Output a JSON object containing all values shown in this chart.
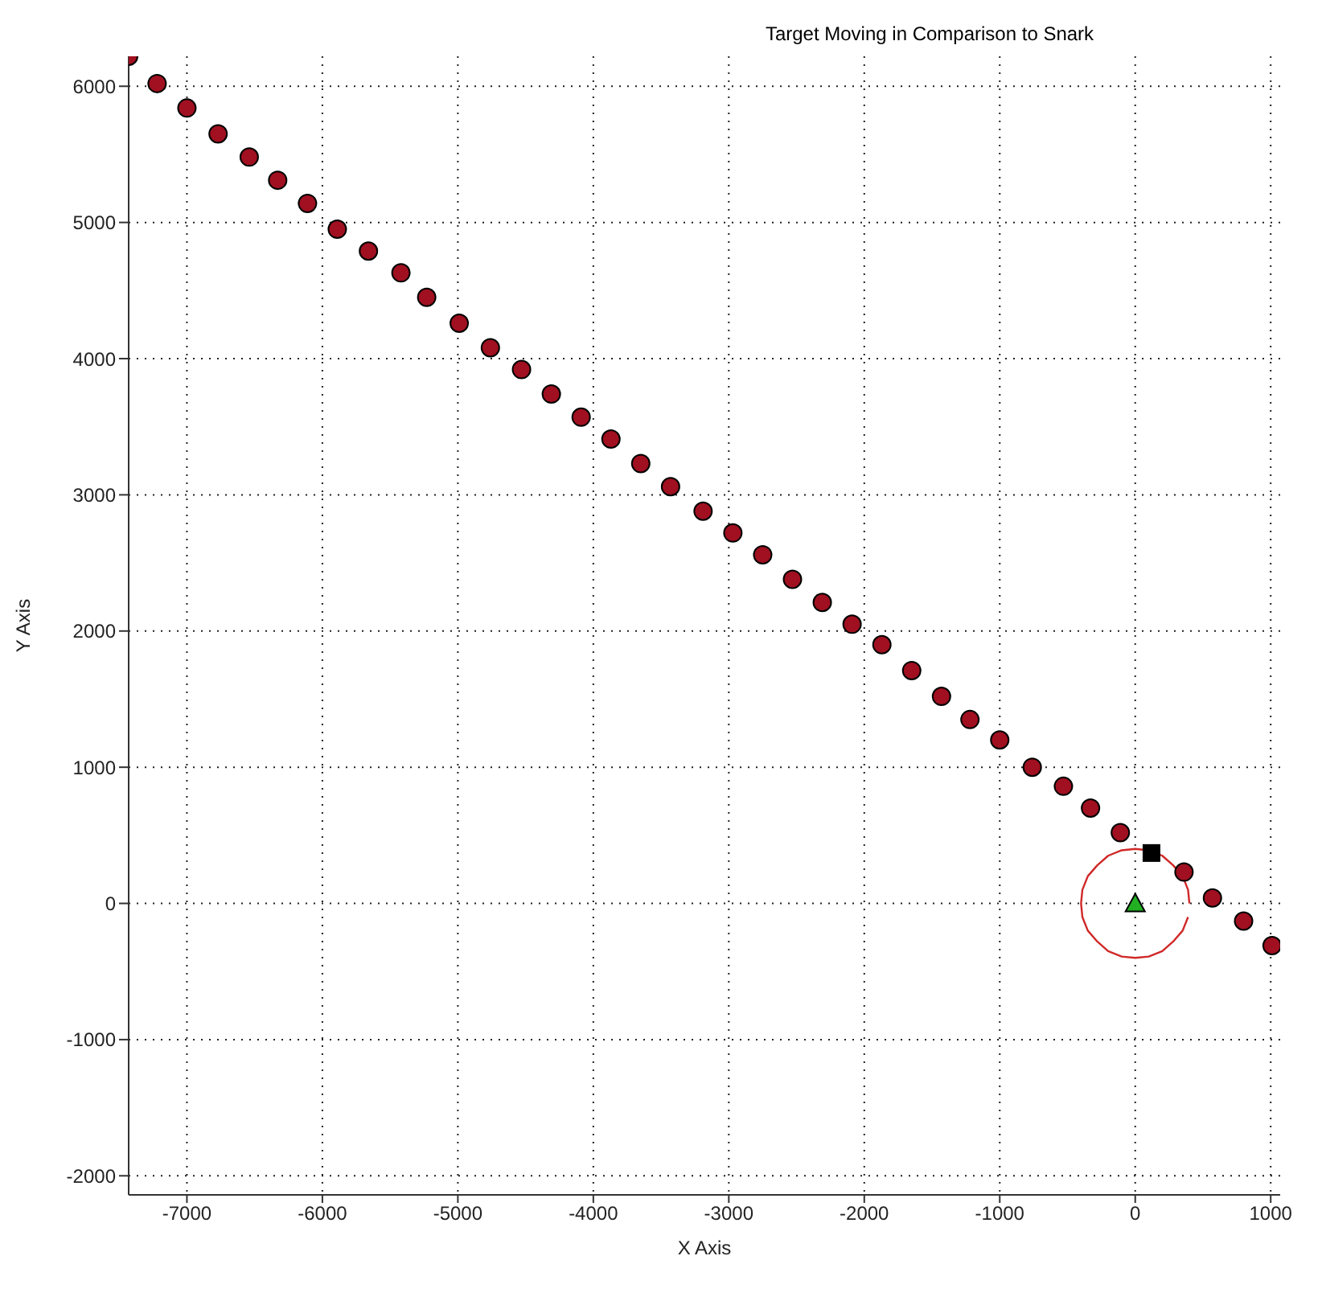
{
  "chart_data": {
    "type": "scatter",
    "title": "Target Moving in Comparison to Snark",
    "xlabel": "X Axis",
    "ylabel": "Y Axis",
    "xlim": [
      -7430,
      1070
    ],
    "ylim": [
      -2140,
      6220
    ],
    "xticks": [
      -7000,
      -6000,
      -5000,
      -4000,
      -3000,
      -2000,
      -1000,
      0,
      1000
    ],
    "yticks": [
      -2000,
      -1000,
      0,
      1000,
      2000,
      3000,
      4000,
      5000,
      6000
    ],
    "grid": true,
    "legend": false,
    "series": [
      {
        "marker": "circle",
        "color": "#a01020",
        "x": [
          -7430,
          -7220,
          -7000,
          -6770,
          -6540,
          -6330,
          -6110,
          -5890,
          -5660,
          -5420,
          -5230,
          -4990,
          -4760,
          -4530,
          -4310,
          -4090,
          -3870,
          -3650,
          -3430,
          -3190,
          -2970,
          -2750,
          -2530,
          -2310,
          -2090,
          -1870,
          -1650,
          -1430,
          -1220,
          -1000,
          -760,
          -530,
          -330,
          -110,
          360,
          570,
          800,
          1010
        ],
        "values": [
          6220,
          6020,
          5840,
          5650,
          5480,
          5310,
          5140,
          4950,
          4790,
          4630,
          4450,
          4260,
          4080,
          3920,
          3740,
          3570,
          3410,
          3230,
          3060,
          2880,
          2720,
          2560,
          2380,
          2210,
          2050,
          1900,
          1710,
          1520,
          1350,
          1200,
          1000,
          860,
          700,
          520,
          230,
          40,
          -130,
          -310
        ]
      },
      {
        "marker": "square",
        "color": "#000000",
        "x": [
          120
        ],
        "values": [
          370
        ]
      },
      {
        "marker": "triangle",
        "color": "#22b022",
        "x": [
          0
        ],
        "values": [
          0
        ]
      },
      {
        "type": "line",
        "marker": "none",
        "color": "#d02828",
        "x": [
          400,
          390,
          350,
          280,
          200,
          100,
          0,
          -100,
          -200,
          -280,
          -350,
          -390,
          -400,
          -390,
          -350,
          -280,
          -200,
          -100,
          0,
          100,
          200,
          280,
          350,
          390
        ],
        "values": [
          0,
          100,
          200,
          280,
          350,
          390,
          400,
          390,
          350,
          280,
          200,
          100,
          0,
          -100,
          -200,
          -280,
          -350,
          -390,
          -400,
          -390,
          -350,
          -280,
          -200,
          -100
        ]
      }
    ]
  }
}
